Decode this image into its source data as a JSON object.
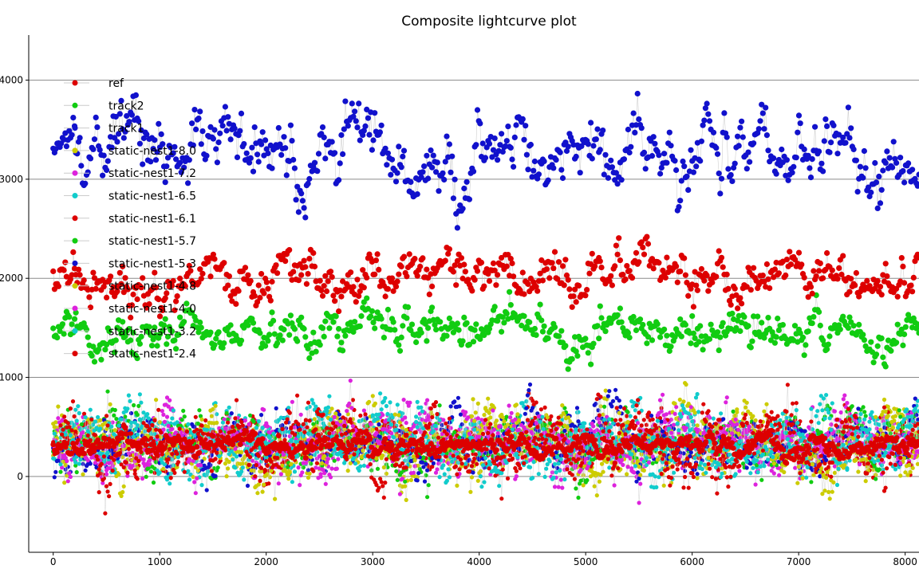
{
  "chart_data": {
    "type": "scatter",
    "title": "Composite lightcurve plot",
    "xlabel": "",
    "ylabel": "",
    "xlim": [
      -230,
      8130
    ],
    "ylim": [
      -765,
      4455
    ],
    "x_ticks": [
      0,
      1000,
      2000,
      3000,
      4000,
      5000,
      6000,
      7000,
      8000
    ],
    "y_ticks": [
      0,
      1000,
      2000,
      3000,
      4000
    ],
    "grid": "horizontal",
    "legend_position": "top-left",
    "series": [
      {
        "name": "ref",
        "color": "#dd0000"
      },
      {
        "name": "track2",
        "color": "#11cc11"
      },
      {
        "name": "track1",
        "color": "#1111cc"
      },
      {
        "name": "static-nest1-8.0",
        "color": "#cccc00"
      },
      {
        "name": "static-nest1-7.2",
        "color": "#dd22dd"
      },
      {
        "name": "static-nest1-6.5",
        "color": "#11cccc"
      },
      {
        "name": "static-nest1-6.1",
        "color": "#dd0000"
      },
      {
        "name": "static-nest1-5.7",
        "color": "#11cc11"
      },
      {
        "name": "static-nest1-5.3",
        "color": "#1111cc"
      },
      {
        "name": "static-nest1-4.8",
        "color": "#cccc00"
      },
      {
        "name": "static-nest1-4.0",
        "color": "#dd22dd"
      },
      {
        "name": "static-nest1-3.2",
        "color": "#11cccc"
      },
      {
        "name": "static-nest1-2.4",
        "color": "#dd0000"
      }
    ],
    "data_description": {
      "track1_level": {
        "center": 3300,
        "spread": 300,
        "x_range": [
          0,
          8130
        ]
      },
      "ref_level_upper": {
        "center": 2050,
        "spread": 200,
        "x_range": [
          0,
          8130
        ]
      },
      "track2_level": {
        "center": 1450,
        "spread": 180,
        "x_range": [
          0,
          8130
        ]
      },
      "static_nest_levels": {
        "center": 350,
        "spread": 250,
        "min": -500,
        "max": 1000,
        "x_range": [
          0,
          8130
        ]
      }
    }
  }
}
